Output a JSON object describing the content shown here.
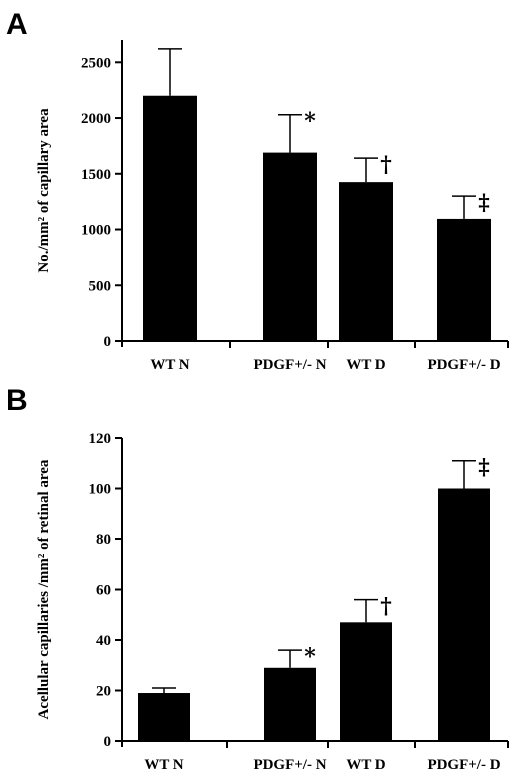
{
  "chart_data": [
    {
      "type": "bar",
      "panel": "A",
      "ylabel": "No./mm² of capillary area",
      "ylim": [
        0,
        2700
      ],
      "yticks": [
        0,
        500,
        1000,
        1500,
        2000,
        2500
      ],
      "categories": [
        "WT N",
        "PDGF+/- N",
        "WT D",
        "PDGF+/- D"
      ],
      "values": [
        2200,
        1690,
        1425,
        1095
      ],
      "errors": [
        420,
        340,
        215,
        205
      ],
      "markers": [
        "",
        "*",
        "†",
        "‡"
      ],
      "colors": {
        "bar": "#000000",
        "axis": "#000000"
      }
    },
    {
      "type": "bar",
      "panel": "B",
      "ylabel": "Acellular capillaries /mm² of retinal area",
      "ylim": [
        0,
        120
      ],
      "yticks": [
        0,
        20,
        40,
        60,
        80,
        100,
        120
      ],
      "categories": [
        "WT N",
        "PDGF+/- N",
        "WT D",
        "PDGF+/- D"
      ],
      "values": [
        19,
        29,
        47,
        100
      ],
      "errors": [
        2,
        7,
        9,
        11
      ],
      "markers": [
        "",
        "*",
        "†",
        "‡"
      ],
      "colors": {
        "bar": "#000000",
        "axis": "#000000"
      }
    }
  ]
}
